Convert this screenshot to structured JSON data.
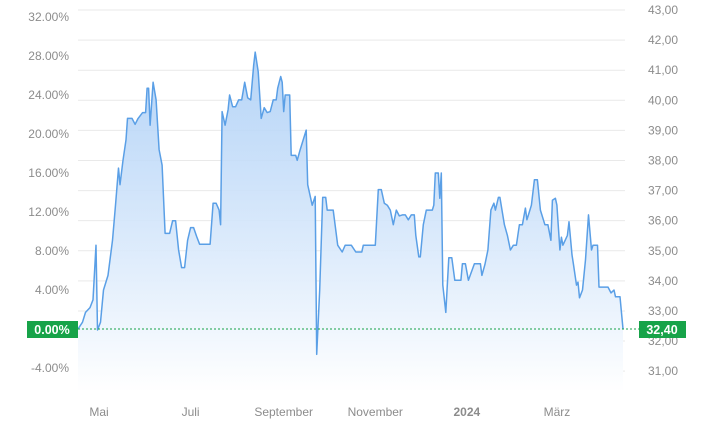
{
  "chart_data": {
    "type": "area",
    "title": "",
    "xlabel": "",
    "ylabel": "",
    "x_ticks": [
      {
        "label": "Mai",
        "date": "2023-05-01",
        "bold": false
      },
      {
        "label": "Juli",
        "date": "2023-07-01",
        "bold": false
      },
      {
        "label": "September",
        "date": "2023-09-01",
        "bold": false
      },
      {
        "label": "November",
        "date": "2023-11-01",
        "bold": false
      },
      {
        "label": "2024",
        "date": "2024-01-01",
        "bold": true
      },
      {
        "label": "März",
        "date": "2024-03-01",
        "bold": false
      }
    ],
    "left_axis": {
      "unit": "percent change",
      "range": [
        -4,
        32
      ],
      "ticks": [
        -4,
        0,
        4,
        8,
        12,
        16,
        20,
        24,
        28,
        32
      ],
      "tick_labels": [
        "-4.00%",
        "0.00%",
        "4.00%",
        "8.00%",
        "12.00%",
        "16.00%",
        "20.00%",
        "24.00%",
        "28.00%",
        "32.00%"
      ]
    },
    "right_axis": {
      "unit": "price",
      "range": [
        31,
        43
      ],
      "ticks": [
        31,
        32,
        33,
        34,
        35,
        36,
        37,
        38,
        39,
        40,
        41,
        42,
        43
      ],
      "tick_labels": [
        "31,00",
        "32,00",
        "33,00",
        "34,00",
        "35,00",
        "36,00",
        "37,00",
        "38,00",
        "39,00",
        "40,00",
        "41,00",
        "42,00",
        "43,00"
      ]
    },
    "base_price": 32.4,
    "grid": true,
    "current": {
      "percent_label": "0.00%",
      "price_label": "32,40"
    },
    "colors": {
      "line": "#5a9fe6",
      "fill_top": "#a9cdf6",
      "fill_bottom": "#ffffff",
      "current": "#17a349",
      "grid": "#e9e9e9"
    },
    "series": [
      {
        "points": [
          [
            "2023-04-17",
            0.0
          ],
          [
            "2023-04-20",
            0.7
          ],
          [
            "2023-04-22",
            1.7
          ],
          [
            "2023-04-25",
            2.2
          ],
          [
            "2023-04-27",
            3.0
          ],
          [
            "2023-04-29",
            8.6
          ],
          [
            "2023-04-30",
            -0.1
          ],
          [
            "2023-05-02",
            0.7
          ],
          [
            "2023-05-04",
            4.0
          ],
          [
            "2023-05-07",
            5.5
          ],
          [
            "2023-05-10",
            9.1
          ],
          [
            "2023-05-12",
            12.7
          ],
          [
            "2023-05-14",
            16.5
          ],
          [
            "2023-05-15",
            14.8
          ],
          [
            "2023-05-17",
            17.3
          ],
          [
            "2023-05-19",
            19.4
          ],
          [
            "2023-05-20",
            21.6
          ],
          [
            "2023-05-23",
            21.6
          ],
          [
            "2023-05-25",
            21.0
          ],
          [
            "2023-05-27",
            21.6
          ],
          [
            "2023-05-30",
            22.2
          ],
          [
            "2023-06-01",
            22.2
          ],
          [
            "2023-06-02",
            24.7
          ],
          [
            "2023-06-03",
            24.7
          ],
          [
            "2023-06-04",
            20.9
          ],
          [
            "2023-06-06",
            25.3
          ],
          [
            "2023-06-08",
            23.5
          ],
          [
            "2023-06-10",
            18.4
          ],
          [
            "2023-06-12",
            16.8
          ],
          [
            "2023-06-14",
            9.8
          ],
          [
            "2023-06-17",
            9.8
          ],
          [
            "2023-06-19",
            11.1
          ],
          [
            "2023-06-21",
            11.1
          ],
          [
            "2023-06-23",
            8.1
          ],
          [
            "2023-06-25",
            6.3
          ],
          [
            "2023-06-27",
            6.3
          ],
          [
            "2023-06-29",
            9.1
          ],
          [
            "2023-07-01",
            10.4
          ],
          [
            "2023-07-03",
            10.4
          ],
          [
            "2023-07-05",
            9.5
          ],
          [
            "2023-07-07",
            8.7
          ],
          [
            "2023-07-11",
            8.7
          ],
          [
            "2023-07-14",
            8.7
          ],
          [
            "2023-07-16",
            12.9
          ],
          [
            "2023-07-18",
            12.9
          ],
          [
            "2023-07-20",
            12.2
          ],
          [
            "2023-07-21",
            10.7
          ],
          [
            "2023-07-22",
            22.3
          ],
          [
            "2023-07-24",
            20.9
          ],
          [
            "2023-07-26",
            22.5
          ],
          [
            "2023-07-27",
            24.0
          ],
          [
            "2023-07-29",
            22.8
          ],
          [
            "2023-07-31",
            22.8
          ],
          [
            "2023-08-02",
            23.5
          ],
          [
            "2023-08-04",
            23.5
          ],
          [
            "2023-08-06",
            25.3
          ],
          [
            "2023-08-08",
            23.7
          ],
          [
            "2023-08-10",
            23.5
          ],
          [
            "2023-08-12",
            27.1
          ],
          [
            "2023-08-13",
            28.4
          ],
          [
            "2023-08-15",
            26.4
          ],
          [
            "2023-08-17",
            21.6
          ],
          [
            "2023-08-19",
            22.7
          ],
          [
            "2023-08-21",
            22.2
          ],
          [
            "2023-08-23",
            22.3
          ],
          [
            "2023-08-25",
            23.5
          ],
          [
            "2023-08-27",
            23.5
          ],
          [
            "2023-08-28",
            24.7
          ],
          [
            "2023-08-30",
            25.9
          ],
          [
            "2023-08-31",
            25.3
          ],
          [
            "2023-09-01",
            22.3
          ],
          [
            "2023-09-02",
            24.0
          ],
          [
            "2023-09-05",
            24.0
          ],
          [
            "2023-09-06",
            17.8
          ],
          [
            "2023-09-09",
            17.8
          ],
          [
            "2023-09-10",
            17.3
          ],
          [
            "2023-09-12",
            18.4
          ],
          [
            "2023-09-14",
            19.4
          ],
          [
            "2023-09-16",
            20.4
          ],
          [
            "2023-09-17",
            14.8
          ],
          [
            "2023-09-20",
            12.7
          ],
          [
            "2023-09-22",
            13.6
          ],
          [
            "2023-09-23",
            -2.6
          ],
          [
            "2023-09-25",
            4.0
          ],
          [
            "2023-09-27",
            13.5
          ],
          [
            "2023-09-29",
            13.5
          ],
          [
            "2023-09-30",
            12.2
          ],
          [
            "2023-10-04",
            12.2
          ],
          [
            "2023-10-07",
            8.6
          ],
          [
            "2023-10-10",
            7.9
          ],
          [
            "2023-10-12",
            8.6
          ],
          [
            "2023-10-16",
            8.6
          ],
          [
            "2023-10-19",
            7.9
          ],
          [
            "2023-10-23",
            7.9
          ],
          [
            "2023-10-24",
            8.6
          ],
          [
            "2023-11-01",
            8.6
          ],
          [
            "2023-11-03",
            14.3
          ],
          [
            "2023-11-05",
            14.3
          ],
          [
            "2023-11-07",
            12.9
          ],
          [
            "2023-11-09",
            12.7
          ],
          [
            "2023-11-11",
            12.2
          ],
          [
            "2023-11-13",
            10.7
          ],
          [
            "2023-11-15",
            12.2
          ],
          [
            "2023-11-17",
            11.6
          ],
          [
            "2023-11-19",
            11.7
          ],
          [
            "2023-11-21",
            11.7
          ],
          [
            "2023-11-23",
            11.2
          ],
          [
            "2023-11-25",
            11.7
          ],
          [
            "2023-11-27",
            11.7
          ],
          [
            "2023-11-28",
            9.6
          ],
          [
            "2023-11-30",
            7.4
          ],
          [
            "2023-12-01",
            7.4
          ],
          [
            "2023-12-03",
            10.7
          ],
          [
            "2023-12-05",
            12.2
          ],
          [
            "2023-12-09",
            12.2
          ],
          [
            "2023-12-10",
            12.7
          ],
          [
            "2023-12-11",
            16.0
          ],
          [
            "2023-12-13",
            16.0
          ],
          [
            "2023-12-14",
            13.4
          ],
          [
            "2023-12-15",
            16.0
          ],
          [
            "2023-12-16",
            4.5
          ],
          [
            "2023-12-18",
            1.7
          ],
          [
            "2023-12-20",
            7.3
          ],
          [
            "2023-12-22",
            7.3
          ],
          [
            "2023-12-24",
            5.0
          ],
          [
            "2023-12-28",
            5.0
          ],
          [
            "2023-12-29",
            6.7
          ],
          [
            "2023-12-31",
            6.7
          ],
          [
            "2024-01-02",
            5.0
          ],
          [
            "2024-01-06",
            6.7
          ],
          [
            "2024-01-10",
            6.7
          ],
          [
            "2024-01-11",
            5.5
          ],
          [
            "2024-01-13",
            6.6
          ],
          [
            "2024-01-15",
            8.1
          ],
          [
            "2024-01-17",
            12.2
          ],
          [
            "2024-01-19",
            12.9
          ],
          [
            "2024-01-20",
            12.2
          ],
          [
            "2024-01-22",
            13.5
          ],
          [
            "2024-01-23",
            13.5
          ],
          [
            "2024-01-26",
            10.7
          ],
          [
            "2024-01-28",
            9.6
          ],
          [
            "2024-01-30",
            8.1
          ],
          [
            "2024-02-01",
            8.6
          ],
          [
            "2024-02-03",
            8.6
          ],
          [
            "2024-02-05",
            10.7
          ],
          [
            "2024-02-07",
            10.7
          ],
          [
            "2024-02-09",
            12.4
          ],
          [
            "2024-02-10",
            11.2
          ],
          [
            "2024-02-12",
            12.2
          ],
          [
            "2024-02-13",
            12.7
          ],
          [
            "2024-02-15",
            15.3
          ],
          [
            "2024-02-17",
            15.3
          ],
          [
            "2024-02-19",
            12.2
          ],
          [
            "2024-02-22",
            10.7
          ],
          [
            "2024-02-24",
            10.7
          ],
          [
            "2024-02-26",
            9.1
          ],
          [
            "2024-02-27",
            13.2
          ],
          [
            "2024-02-29",
            13.4
          ],
          [
            "2024-03-01",
            12.7
          ],
          [
            "2024-03-03",
            8.1
          ],
          [
            "2024-03-04",
            9.4
          ],
          [
            "2024-03-05",
            8.6
          ],
          [
            "2024-03-08",
            9.6
          ],
          [
            "2024-03-09",
            11.0
          ],
          [
            "2024-03-11",
            7.6
          ],
          [
            "2024-03-12",
            6.6
          ],
          [
            "2024-03-14",
            4.5
          ],
          [
            "2024-03-15",
            4.8
          ],
          [
            "2024-03-16",
            3.2
          ],
          [
            "2024-03-18",
            4.0
          ],
          [
            "2024-03-20",
            7.1
          ],
          [
            "2024-03-22",
            11.7
          ],
          [
            "2024-03-24",
            8.1
          ],
          [
            "2024-03-25",
            8.6
          ],
          [
            "2024-03-28",
            8.6
          ],
          [
            "2024-03-29",
            4.3
          ],
          [
            "2024-04-04",
            4.3
          ],
          [
            "2024-04-06",
            3.7
          ],
          [
            "2024-04-08",
            4.0
          ],
          [
            "2024-04-09",
            3.3
          ],
          [
            "2024-04-12",
            3.3
          ],
          [
            "2024-04-14",
            0.0
          ]
        ]
      }
    ]
  }
}
